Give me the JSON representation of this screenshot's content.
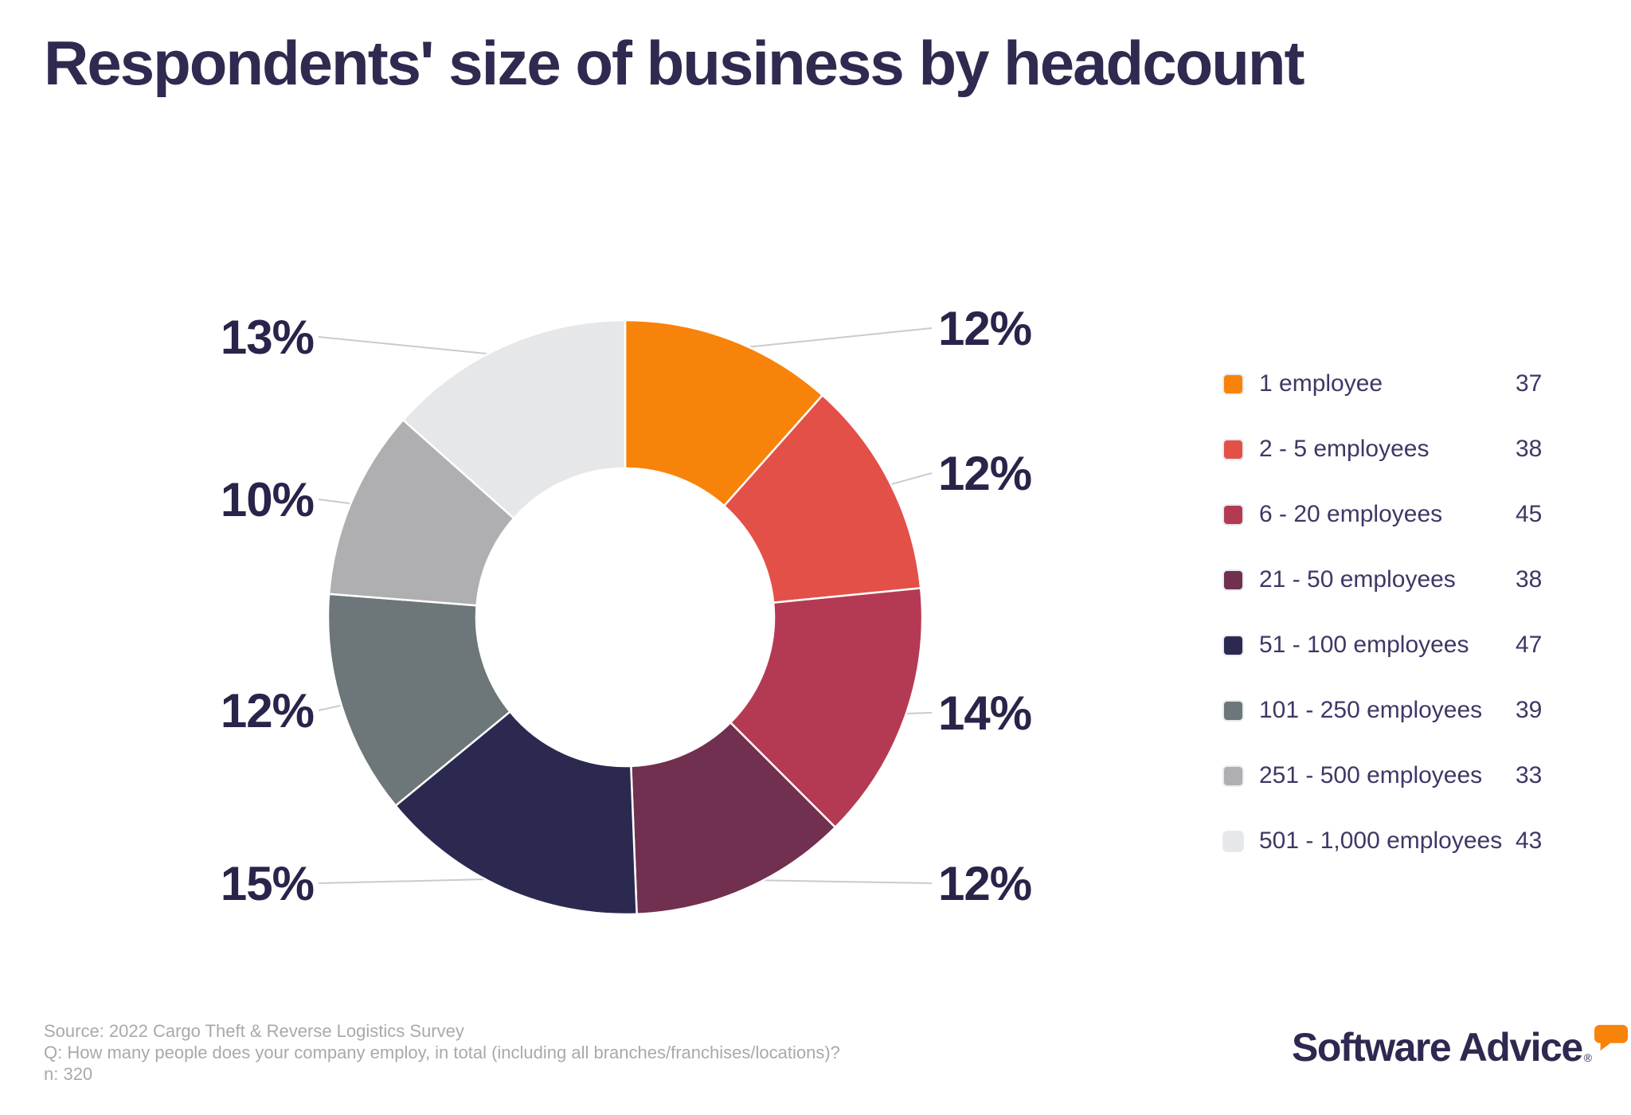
{
  "page": {
    "title": "Respondents' size of business by headcount",
    "background_color": "#ffffff",
    "title_color": "#2F2A50"
  },
  "chart_data": {
    "type": "pie",
    "subtype": "donut",
    "title": "Respondents' size of business by headcount",
    "categories": [
      "1 employee",
      "2 - 5 employees",
      "6 - 20 employees",
      "21 - 50 employees",
      "51 - 100 employees",
      "101 - 250 employees",
      "251 - 500 employees",
      "501 - 1,000 employees"
    ],
    "values": [
      37,
      38,
      45,
      38,
      47,
      39,
      33,
      43
    ],
    "percent_labels": [
      "12%",
      "12%",
      "14%",
      "12%",
      "15%",
      "12%",
      "10%",
      "13%"
    ],
    "colors": [
      "#F8830B",
      "#E35048",
      "#B43A53",
      "#71304F",
      "#2B2950",
      "#6D7678",
      "#AFAFB1",
      "#E6E7E8"
    ],
    "total": 320,
    "start_angle_deg": 0,
    "direction": "clockwise",
    "legend_position": "right",
    "leader_line_color": "#C9CBCE"
  },
  "legend": {
    "items": [
      {
        "label": "1 employee",
        "value": "37"
      },
      {
        "label": "2 - 5 employees",
        "value": "38"
      },
      {
        "label": "6 - 20 employees",
        "value": "45"
      },
      {
        "label": "21 - 50 employees",
        "value": "38"
      },
      {
        "label": "51 - 100 employees",
        "value": "47"
      },
      {
        "label": "101 - 250 employees",
        "value": "39"
      },
      {
        "label": "251 - 500 employees",
        "value": "33"
      },
      {
        "label": "501 - 1,000 employees",
        "value": "43"
      }
    ]
  },
  "footer": {
    "lines": [
      "Source: 2022 Cargo Theft & Reverse Logistics Survey",
      "Q: How many people does your company employ, in total (including all branches/franchises/locations)?",
      "n: 320"
    ]
  },
  "branding": {
    "name": "Software Advice",
    "registered_mark": "®",
    "accent_color": "#F8830B",
    "text_color": "#2E2950"
  }
}
